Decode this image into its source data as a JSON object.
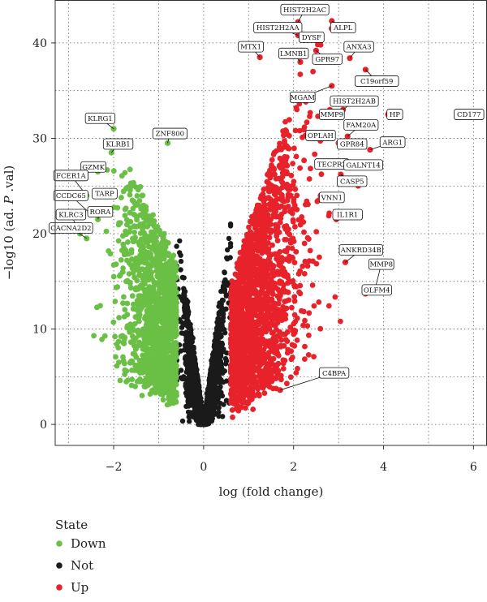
{
  "chart_data": {
    "type": "scatter",
    "xlabel": "log (fold change)",
    "ylabel_parts": [
      "−log10 (ad. ",
      "P",
      " .val)"
    ],
    "xlim": [
      -3.3,
      6.3
    ],
    "ylim": [
      -2.2,
      44.5
    ],
    "xticks": [
      -2,
      0,
      2,
      4,
      6
    ],
    "xtick_labels": [
      "−2",
      "0",
      "2",
      "4",
      "6"
    ],
    "yticks": [
      0,
      10,
      20,
      30,
      40
    ],
    "ytick_labels": [
      "0",
      "10",
      "20",
      "30",
      "40"
    ],
    "grid": true,
    "legend": {
      "title": "State",
      "placement": "bottom-left",
      "entries": [
        {
          "label": "Down",
          "color": "#6abf45"
        },
        {
          "label": "Not",
          "color": "#1a1a1a"
        },
        {
          "label": "Up",
          "color": "#e8222a"
        }
      ]
    },
    "series_colors": {
      "Down": "#6abf45",
      "Not": "#1a1a1a",
      "Up": "#e8222a"
    },
    "labeled_points": [
      {
        "gene": "HIST2H2AC",
        "x": 2.1,
        "y": 42.2,
        "lx": 2.25,
        "ly": 43.5
      },
      {
        "gene": "ALPL",
        "x": 2.85,
        "y": 42.3,
        "lx": 3.1,
        "ly": 41.6
      },
      {
        "gene": "HIST2H2AA",
        "x": 2.1,
        "y": 40.8,
        "lx": 1.65,
        "ly": 41.6
      },
      {
        "gene": "DYSF",
        "x": 2.35,
        "y": 40.5,
        "lx": 2.4,
        "ly": 40.6
      },
      {
        "gene": "MTX1",
        "x": 1.25,
        "y": 38.5,
        "lx": 1.05,
        "ly": 39.6
      },
      {
        "gene": "LMNB1",
        "x": 2.15,
        "y": 38.0,
        "lx": 2.0,
        "ly": 38.9
      },
      {
        "gene": "ANXA3",
        "x": 3.25,
        "y": 38.4,
        "lx": 3.45,
        "ly": 39.6
      },
      {
        "gene": "GPR97",
        "x": 2.5,
        "y": 39.2,
        "lx": 2.75,
        "ly": 38.3
      },
      {
        "gene": "C19orf59",
        "x": 3.6,
        "y": 37.2,
        "lx": 3.85,
        "ly": 36.0
      },
      {
        "gene": "MGAM",
        "x": 2.85,
        "y": 35.5,
        "lx": 2.2,
        "ly": 34.3
      },
      {
        "gene": "HIST2H2AB",
        "x": 3.1,
        "y": 33.0,
        "lx": 3.35,
        "ly": 33.9
      },
      {
        "gene": "MMP9",
        "x": 2.65,
        "y": 32.4,
        "lx": 2.85,
        "ly": 32.5
      },
      {
        "gene": "HP",
        "x": 4.1,
        "y": 32.5,
        "lx": 4.25,
        "ly": 32.5
      },
      {
        "gene": "CD177",
        "x": 5.7,
        "y": 32.5,
        "lx": 5.9,
        "ly": 32.5
      },
      {
        "gene": "FAM20A",
        "x": 3.2,
        "y": 30.2,
        "lx": 3.5,
        "ly": 31.4
      },
      {
        "gene": "OPLAH",
        "x": 2.45,
        "y": 30.0,
        "lx": 2.6,
        "ly": 30.3
      },
      {
        "gene": "GPR84",
        "x": 3.0,
        "y": 29.5,
        "lx": 3.3,
        "ly": 29.4
      },
      {
        "gene": "ARG1",
        "x": 3.7,
        "y": 28.8,
        "lx": 4.2,
        "ly": 29.6
      },
      {
        "gene": "TECPR2",
        "x": 2.75,
        "y": 27.4,
        "lx": 2.85,
        "ly": 27.3
      },
      {
        "gene": "GALNT14",
        "x": 3.25,
        "y": 27.2,
        "lx": 3.55,
        "ly": 27.2
      },
      {
        "gene": "CASP5",
        "x": 3.05,
        "y": 26.2,
        "lx": 3.3,
        "ly": 25.5
      },
      {
        "gene": "VNN1",
        "x": 2.6,
        "y": 24.0,
        "lx": 2.85,
        "ly": 23.8
      },
      {
        "gene": "IL1R1",
        "x": 2.95,
        "y": 21.5,
        "lx": 3.2,
        "ly": 22.0
      },
      {
        "gene": "ANKRD34B",
        "x": 3.15,
        "y": 17.0,
        "lx": 3.5,
        "ly": 18.3
      },
      {
        "gene": "MMP8",
        "x": 3.8,
        "y": 14.0,
        "lx": 3.95,
        "ly": 16.8
      },
      {
        "gene": "OLFM4",
        "x": 3.6,
        "y": 13.7,
        "lx": 3.85,
        "ly": 14.1
      },
      {
        "gene": "C4BPA",
        "x": 1.7,
        "y": 3.6,
        "lx": 2.9,
        "ly": 5.4
      },
      {
        "gene": "KLRG1",
        "x": -2.0,
        "y": 31.0,
        "lx": -2.3,
        "ly": 32.1
      },
      {
        "gene": "ZNF800",
        "x": -0.8,
        "y": 29.5,
        "lx": -0.75,
        "ly": 30.5
      },
      {
        "gene": "KLRB1",
        "x": -2.05,
        "y": 28.5,
        "lx": -1.9,
        "ly": 29.4
      },
      {
        "gene": "GZMK",
        "x": -2.35,
        "y": 26.5,
        "lx": -2.45,
        "ly": 27.0
      },
      {
        "gene": "FCER1A",
        "x": -2.6,
        "y": 24.0,
        "lx": -2.95,
        "ly": 26.1
      },
      {
        "gene": "TARP",
        "x": -2.05,
        "y": 24.0,
        "lx": -2.2,
        "ly": 24.2
      },
      {
        "gene": "CCDC65",
        "x": -2.5,
        "y": 22.0,
        "lx": -2.95,
        "ly": 24.0
      },
      {
        "gene": "RORA",
        "x": -2.35,
        "y": 21.5,
        "lx": -2.3,
        "ly": 22.3
      },
      {
        "gene": "KLRC3",
        "x": -2.75,
        "y": 20.0,
        "lx": -2.95,
        "ly": 22.0
      },
      {
        "gene": "CACNA2D2",
        "x": -2.6,
        "y": 19.5,
        "lx": -2.95,
        "ly": 20.6
      }
    ]
  }
}
